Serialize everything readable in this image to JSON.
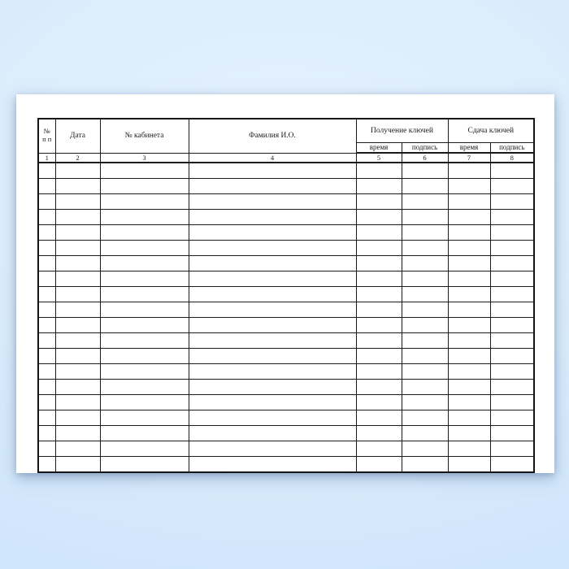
{
  "document": {
    "kind": "blank-key-log-journal-page",
    "colors": {
      "background_center": "#e6f2fe",
      "background_edge": "#cde4f9",
      "sheet": "#ffffff",
      "line": "#1a1a1a",
      "text": "#1a1a1a"
    }
  },
  "table": {
    "header": {
      "col_num": {
        "line1": "№",
        "line2": "п п"
      },
      "col_date": "Дата",
      "col_cabinet": "№ кабинета",
      "col_name": "Фамилия И.О.",
      "group_receive": "Получение ключей",
      "group_return": "Сдача ключей",
      "subheaders": [
        "время",
        "подпись",
        "время",
        "подпись"
      ]
    },
    "column_numbers": [
      "1",
      "2",
      "3",
      "4",
      "5",
      "6",
      "7",
      "8"
    ],
    "column_count": 8,
    "blank_row_count": 20
  }
}
